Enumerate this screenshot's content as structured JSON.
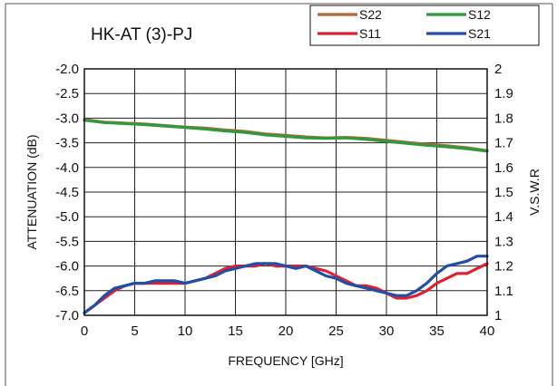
{
  "chart_data": {
    "type": "line",
    "title": "HK-AT (3)-PJ",
    "xlabel": "FREQUENCY [GHz]",
    "ylabel": "ATTENUATION (dB)",
    "y2label": "V.S.W.R",
    "xlim": [
      0,
      40
    ],
    "ylim": [
      -7.0,
      -2.0
    ],
    "y2lim": [
      1.0,
      2.0
    ],
    "x_ticks": [
      "0",
      "5",
      "10",
      "15",
      "20",
      "25",
      "30",
      "35",
      "40"
    ],
    "y_ticks": [
      "-2.0",
      "-2.5",
      "-3.0",
      "-3.5",
      "-4.0",
      "-4.5",
      "-5.0",
      "-5.5",
      "-6.0",
      "-6.5",
      "-7.0"
    ],
    "y2_ticks": [
      "2",
      "1.9",
      "1.8",
      "1.7",
      "1.6",
      "1.5",
      "1.4",
      "1.3",
      "1.2",
      "1.1",
      "1"
    ],
    "grid": true,
    "legend_position": "top-right",
    "series": [
      {
        "name": "S22",
        "axis": "left",
        "color": "#b5653a",
        "x": [
          0,
          2,
          4,
          6,
          8,
          10,
          12,
          14,
          16,
          18,
          20,
          22,
          24,
          26,
          28,
          30,
          32,
          34,
          36,
          38,
          40
        ],
        "values": [
          -3.03,
          -3.08,
          -3.1,
          -3.12,
          -3.15,
          -3.18,
          -3.2,
          -3.24,
          -3.27,
          -3.32,
          -3.35,
          -3.38,
          -3.4,
          -3.39,
          -3.41,
          -3.45,
          -3.49,
          -3.53,
          -3.56,
          -3.6,
          -3.66
        ]
      },
      {
        "name": "S12",
        "axis": "left",
        "color": "#2e9a3c",
        "x": [
          0,
          2,
          4,
          6,
          8,
          10,
          12,
          14,
          16,
          18,
          20,
          22,
          24,
          26,
          28,
          30,
          32,
          34,
          36,
          38,
          40
        ],
        "values": [
          -3.04,
          -3.09,
          -3.11,
          -3.13,
          -3.16,
          -3.19,
          -3.22,
          -3.26,
          -3.29,
          -3.34,
          -3.37,
          -3.4,
          -3.41,
          -3.4,
          -3.43,
          -3.47,
          -3.51,
          -3.55,
          -3.58,
          -3.62,
          -3.67
        ]
      },
      {
        "name": "S11",
        "axis": "right",
        "color": "#e0202e",
        "x": [
          0,
          1,
          2,
          3,
          4,
          5,
          6,
          7,
          8,
          9,
          10,
          11,
          12,
          13,
          14,
          15,
          16,
          17,
          18,
          19,
          20,
          21,
          22,
          23,
          24,
          25,
          26,
          27,
          28,
          29,
          30,
          31,
          32,
          33,
          34,
          35,
          36,
          37,
          38,
          39,
          40
        ],
        "values": [
          1.01,
          1.04,
          1.07,
          1.1,
          1.12,
          1.13,
          1.13,
          1.13,
          1.13,
          1.13,
          1.13,
          1.14,
          1.15,
          1.17,
          1.19,
          1.2,
          1.2,
          1.2,
          1.21,
          1.2,
          1.2,
          1.2,
          1.2,
          1.19,
          1.18,
          1.16,
          1.14,
          1.12,
          1.12,
          1.11,
          1.09,
          1.07,
          1.07,
          1.08,
          1.1,
          1.13,
          1.15,
          1.17,
          1.17,
          1.19,
          1.21
        ]
      },
      {
        "name": "S21",
        "axis": "right",
        "color": "#1f4fa8",
        "x": [
          0,
          1,
          2,
          3,
          4,
          5,
          6,
          7,
          8,
          9,
          10,
          11,
          12,
          13,
          14,
          15,
          16,
          17,
          18,
          19,
          20,
          21,
          22,
          23,
          24,
          25,
          26,
          27,
          28,
          29,
          30,
          31,
          32,
          33,
          34,
          35,
          36,
          37,
          38,
          39,
          40
        ],
        "values": [
          1.01,
          1.04,
          1.08,
          1.11,
          1.12,
          1.13,
          1.13,
          1.14,
          1.14,
          1.14,
          1.13,
          1.14,
          1.15,
          1.16,
          1.18,
          1.19,
          1.2,
          1.21,
          1.21,
          1.21,
          1.2,
          1.19,
          1.2,
          1.18,
          1.16,
          1.15,
          1.13,
          1.12,
          1.11,
          1.1,
          1.09,
          1.08,
          1.08,
          1.1,
          1.13,
          1.17,
          1.2,
          1.21,
          1.22,
          1.24,
          1.24
        ]
      }
    ]
  }
}
